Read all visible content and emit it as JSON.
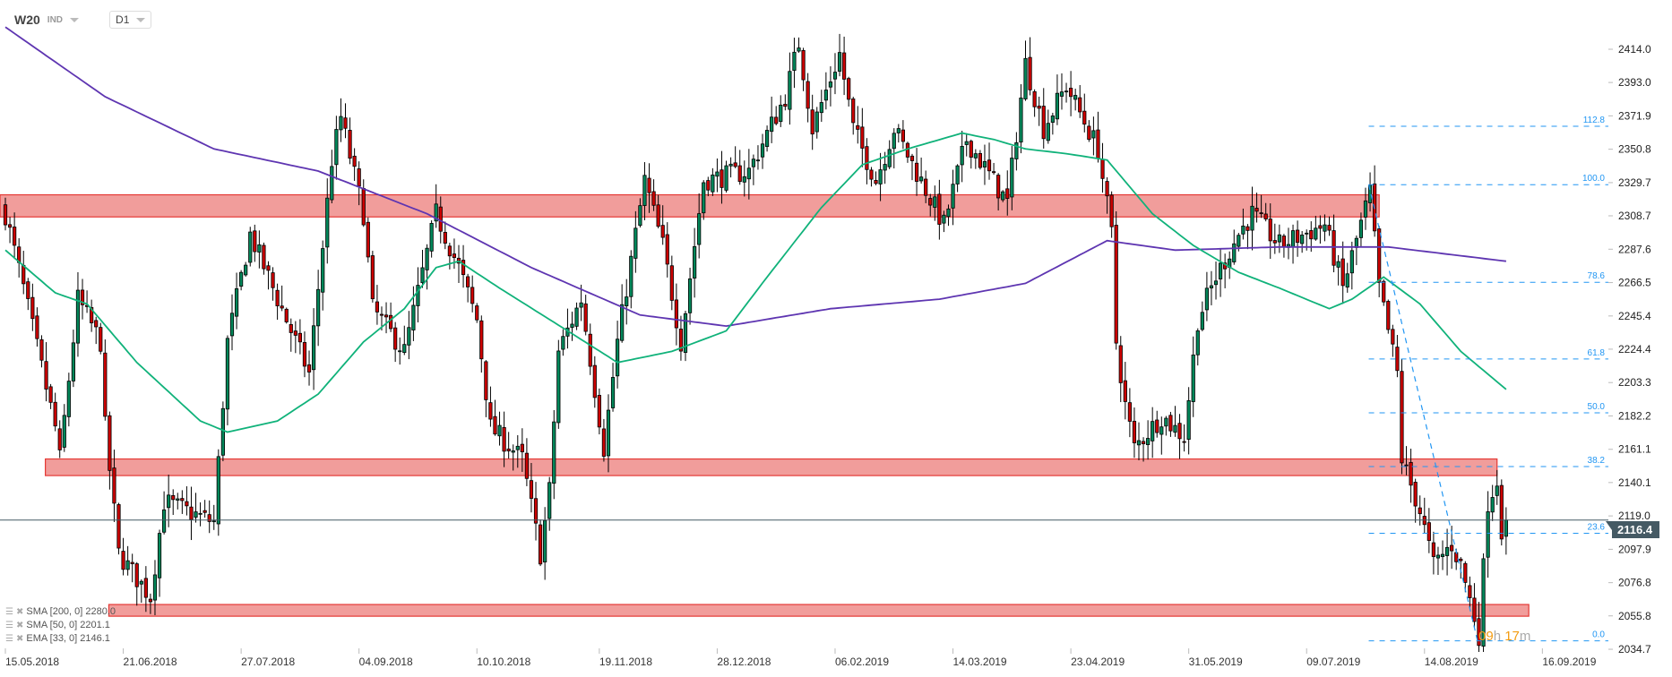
{
  "header": {
    "symbol": "W20",
    "type": "IND",
    "timeframe": "D1"
  },
  "legend": [
    {
      "label": "SMA [200,  0] 2280.0"
    },
    {
      "label": "SMA [50,  0] 2201.1"
    },
    {
      "label": "EMA [33,  0] 2146.1"
    }
  ],
  "countdown": {
    "hours": "09",
    "h": "h",
    "minutes": "17",
    "m": "m"
  },
  "colors": {
    "up": "#00875a",
    "down": "#cc0000",
    "sma200": "#5e35b1",
    "sma50": "#10b27a",
    "zone_fill": "#f19d9b",
    "zone_border": "#e53935",
    "fib": "#2196f3",
    "price_line": "#455a64"
  },
  "chart_data": {
    "type": "candlestick",
    "title": "W20 IND D1",
    "ylim": [
      2030,
      2430
    ],
    "y_ticks": [
      "2414.0",
      "2393.0",
      "2371.9",
      "2350.8",
      "2329.7",
      "2308.7",
      "2287.6",
      "2266.5",
      "2245.4",
      "2224.4",
      "2203.3",
      "2182.2",
      "2161.1",
      "2140.1",
      "2119.0",
      "2097.9",
      "2076.8",
      "2055.8",
      "2034.7"
    ],
    "x_ticks": [
      {
        "i": 0,
        "label": "15.05.2018"
      },
      {
        "i": 26,
        "label": "21.06.2018"
      },
      {
        "i": 52,
        "label": "27.07.2018"
      },
      {
        "i": 78,
        "label": "04.09.2018"
      },
      {
        "i": 104,
        "label": "10.10.2018"
      },
      {
        "i": 131,
        "label": "19.11.2018"
      },
      {
        "i": 157,
        "label": "28.12.2018"
      },
      {
        "i": 183,
        "label": "06.02.2019"
      },
      {
        "i": 209,
        "label": "14.03.2019"
      },
      {
        "i": 235,
        "label": "23.04.2019"
      },
      {
        "i": 261,
        "label": "31.05.2019"
      },
      {
        "i": 287,
        "label": "09.07.2019"
      },
      {
        "i": 313,
        "label": "14.08.2019"
      },
      {
        "i": 339,
        "label": "16.09.2019"
      }
    ],
    "last_price": "2116.4",
    "candle_count": 332,
    "close_keypoints": [
      [
        0,
        2310
      ],
      [
        4,
        2263
      ],
      [
        11,
        2175
      ],
      [
        12,
        2155
      ],
      [
        16,
        2256
      ],
      [
        21,
        2229
      ],
      [
        22,
        2175
      ],
      [
        25,
        2095
      ],
      [
        32,
        2068
      ],
      [
        35,
        2128
      ],
      [
        46,
        2115
      ],
      [
        49,
        2229
      ],
      [
        54,
        2297
      ],
      [
        67,
        2209
      ],
      [
        72,
        2344
      ],
      [
        74,
        2371
      ],
      [
        79,
        2310
      ],
      [
        81,
        2250
      ],
      [
        88,
        2223
      ],
      [
        95,
        2310
      ],
      [
        100,
        2276
      ],
      [
        104,
        2243
      ],
      [
        107,
        2175
      ],
      [
        114,
        2155
      ],
      [
        118,
        2095
      ],
      [
        120,
        2135
      ],
      [
        122,
        2223
      ],
      [
        127,
        2256
      ],
      [
        132,
        2162
      ],
      [
        135,
        2229
      ],
      [
        141,
        2331
      ],
      [
        145,
        2290
      ],
      [
        149,
        2229
      ],
      [
        154,
        2331
      ],
      [
        164,
        2337
      ],
      [
        172,
        2384
      ],
      [
        175,
        2418
      ],
      [
        178,
        2364
      ],
      [
        184,
        2411
      ],
      [
        187,
        2364
      ],
      [
        192,
        2331
      ],
      [
        196,
        2364
      ],
      [
        207,
        2303
      ],
      [
        212,
        2357
      ],
      [
        221,
        2317
      ],
      [
        225,
        2405
      ],
      [
        229,
        2364
      ],
      [
        234,
        2391
      ],
      [
        241,
        2351
      ],
      [
        244,
        2297
      ],
      [
        245,
        2229
      ],
      [
        247,
        2189
      ],
      [
        249,
        2162
      ],
      [
        255,
        2182
      ],
      [
        260,
        2169
      ],
      [
        263,
        2243
      ],
      [
        267,
        2270
      ],
      [
        272,
        2297
      ],
      [
        275,
        2310
      ],
      [
        281,
        2290
      ],
      [
        291,
        2303
      ],
      [
        295,
        2263
      ],
      [
        301,
        2324
      ],
      [
        303,
        2263
      ],
      [
        307,
        2209
      ],
      [
        308,
        2155
      ],
      [
        312,
        2122
      ],
      [
        315,
        2088
      ],
      [
        319,
        2101
      ],
      [
        321,
        2088
      ],
      [
        325,
        2044
      ],
      [
        327,
        2128
      ],
      [
        329,
        2142
      ],
      [
        330,
        2111
      ],
      [
        331,
        2116.4
      ]
    ],
    "series": [
      {
        "name": "SMA 200",
        "last": 2280.0,
        "keypoints": [
          [
            0,
            2428
          ],
          [
            22,
            2384
          ],
          [
            46,
            2351
          ],
          [
            69,
            2337
          ],
          [
            93,
            2310
          ],
          [
            116,
            2276
          ],
          [
            140,
            2246
          ],
          [
            159,
            2239
          ],
          [
            182,
            2250
          ],
          [
            206,
            2256
          ],
          [
            225,
            2266
          ],
          [
            243,
            2293
          ],
          [
            258,
            2287
          ],
          [
            281,
            2289
          ],
          [
            305,
            2289
          ],
          [
            331,
            2280
          ]
        ]
      },
      {
        "name": "SMA 50",
        "last": 2201.1,
        "keypoints": [
          [
            0,
            2287
          ],
          [
            11,
            2260
          ],
          [
            18,
            2253
          ],
          [
            29,
            2216
          ],
          [
            43,
            2179
          ],
          [
            49,
            2172
          ],
          [
            60,
            2179
          ],
          [
            69,
            2196
          ],
          [
            79,
            2229
          ],
          [
            88,
            2250
          ],
          [
            95,
            2276
          ],
          [
            100,
            2280
          ],
          [
            109,
            2263
          ],
          [
            124,
            2236
          ],
          [
            135,
            2216
          ],
          [
            147,
            2223
          ],
          [
            159,
            2236
          ],
          [
            168,
            2270
          ],
          [
            180,
            2314
          ],
          [
            189,
            2341
          ],
          [
            199,
            2351
          ],
          [
            211,
            2361
          ],
          [
            218,
            2357
          ],
          [
            225,
            2351
          ],
          [
            234,
            2348
          ],
          [
            243,
            2344
          ],
          [
            253,
            2310
          ],
          [
            262,
            2290
          ],
          [
            272,
            2273
          ],
          [
            281,
            2263
          ],
          [
            292,
            2250
          ],
          [
            297,
            2256
          ],
          [
            304,
            2270
          ],
          [
            312,
            2253
          ],
          [
            321,
            2223
          ],
          [
            331,
            2199
          ]
        ]
      }
    ],
    "zones": [
      {
        "from_i": 0,
        "to_i": 303,
        "top": 2322,
        "bottom": 2308
      },
      {
        "from_i": 10,
        "to_i": 329,
        "top": 2155,
        "bottom": 2144.5
      },
      {
        "from_i": 24,
        "to_i": 336,
        "top": 2063,
        "bottom": 2055.6
      }
    ],
    "fibonacci": {
      "from_i": 300.7,
      "to_i": 324.7,
      "high": 2328.4,
      "low": 2040,
      "levels": [
        {
          "ratio": 112.8,
          "label": "112.8"
        },
        {
          "ratio": 100,
          "label": "100.0"
        },
        {
          "ratio": 78.6,
          "label": "78.6"
        },
        {
          "ratio": 61.8,
          "label": "61.8"
        },
        {
          "ratio": 50,
          "label": "50.0"
        },
        {
          "ratio": 38.2,
          "label": "38.2"
        },
        {
          "ratio": 23.6,
          "label": "23.6"
        },
        {
          "ratio": 0,
          "label": "0.0"
        }
      ]
    }
  }
}
